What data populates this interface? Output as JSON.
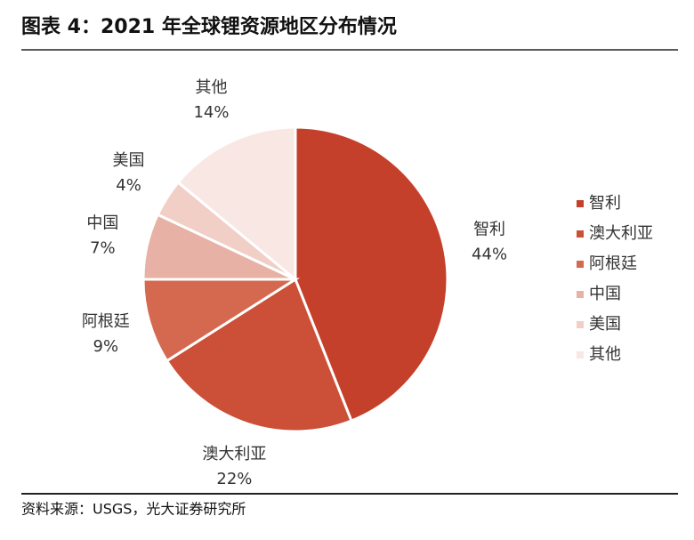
{
  "chart_data": {
    "type": "pie",
    "title": "图表 4：2021 年全球锂资源地区分布情况",
    "categories": [
      "智利",
      "澳大利亚",
      "阿根廷",
      "中国",
      "美国",
      "其他"
    ],
    "values": [
      44,
      22,
      9,
      7,
      4,
      14
    ],
    "value_labels": [
      "44%",
      "22%",
      "9%",
      "7%",
      "4%",
      "14%"
    ],
    "colors": [
      "#c4402a",
      "#cc4f37",
      "#d4694f",
      "#e7b2a5",
      "#f1cfc7",
      "#f9e7e4"
    ],
    "legend": "right",
    "source": "资料来源：USGS，光大证券研究所"
  }
}
